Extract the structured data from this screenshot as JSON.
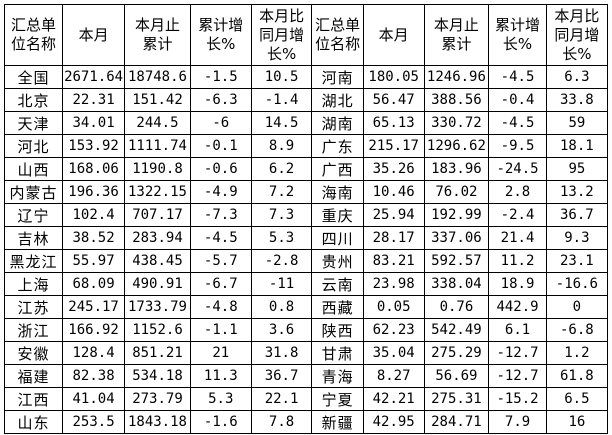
{
  "page": {
    "background_color": "#fdfdfd",
    "table_background_color": "#ffffff",
    "border_color": "#000000",
    "text_color": "#000000"
  },
  "table": {
    "header_labels": [
      "汇总单\n位名称",
      "本月",
      "本月止\n累计",
      "累计增\n长%",
      "本月比\n同月增\n长%"
    ],
    "column_group_count": 2,
    "rows_per_group": 16
  },
  "chart_data": {
    "type": "table",
    "columns": [
      "汇总单位名称",
      "本月",
      "本月止累计",
      "累计增长%",
      "本月比同月增长%"
    ],
    "layout": "two column-groups side by side, 16 rows each; records 0-15 fill the left group top-to-bottom, records 16-31 fill the right group",
    "records": [
      {
        "name": "全国",
        "values": [
          "2671.64",
          "18748.6",
          "-1.5",
          "10.5"
        ]
      },
      {
        "name": "北京",
        "values": [
          "22.31",
          "151.42",
          "-6.3",
          "-1.4"
        ]
      },
      {
        "name": "天津",
        "values": [
          "34.01",
          "244.5",
          "-6",
          "14.5"
        ]
      },
      {
        "name": "河北",
        "values": [
          "153.92",
          "1111.74",
          "-0.1",
          "8.9"
        ]
      },
      {
        "name": "山西",
        "values": [
          "168.06",
          "1190.8",
          "-0.6",
          "6.2"
        ]
      },
      {
        "name": "内蒙古",
        "values": [
          "196.36",
          "1322.15",
          "-4.9",
          "7.2"
        ]
      },
      {
        "name": "辽宁",
        "values": [
          "102.4",
          "707.17",
          "-7.3",
          "7.3"
        ]
      },
      {
        "name": "吉林",
        "values": [
          "38.52",
          "283.94",
          "-4.5",
          "5.3"
        ]
      },
      {
        "name": "黑龙江",
        "values": [
          "55.97",
          "438.45",
          "-5.7",
          "-2.8"
        ]
      },
      {
        "name": "上海",
        "values": [
          "68.09",
          "490.91",
          "-6.7",
          "-11"
        ]
      },
      {
        "name": "江苏",
        "values": [
          "245.17",
          "1733.79",
          "-4.8",
          "0.8"
        ]
      },
      {
        "name": "浙江",
        "values": [
          "166.92",
          "1152.6",
          "-1.1",
          "3.6"
        ]
      },
      {
        "name": "安徽",
        "values": [
          "128.4",
          "851.21",
          "21",
          "31.8"
        ]
      },
      {
        "name": "福建",
        "values": [
          "82.38",
          "534.18",
          "11.3",
          "36.7"
        ]
      },
      {
        "name": "江西",
        "values": [
          "41.04",
          "273.79",
          "5.3",
          "22.1"
        ]
      },
      {
        "name": "山东",
        "values": [
          "253.5",
          "1843.18",
          "-1.6",
          "7.8"
        ]
      },
      {
        "name": "河南",
        "values": [
          "180.05",
          "1246.96",
          "-4.5",
          "6.3"
        ]
      },
      {
        "name": "湖北",
        "values": [
          "56.47",
          "388.56",
          "-0.4",
          "33.8"
        ]
      },
      {
        "name": "湖南",
        "values": [
          "65.13",
          "330.72",
          "-4.5",
          "59"
        ]
      },
      {
        "name": "广东",
        "values": [
          "215.17",
          "1296.62",
          "-9.5",
          "18.1"
        ]
      },
      {
        "name": "广西",
        "values": [
          "35.26",
          "183.96",
          "-24.5",
          "95"
        ]
      },
      {
        "name": "海南",
        "values": [
          "10.46",
          "76.02",
          "2.8",
          "13.2"
        ]
      },
      {
        "name": "重庆",
        "values": [
          "25.94",
          "192.99",
          "-2.4",
          "36.7"
        ]
      },
      {
        "name": "四川",
        "values": [
          "28.17",
          "337.06",
          "21.4",
          "9.3"
        ]
      },
      {
        "name": "贵州",
        "values": [
          "83.21",
          "592.57",
          "11.2",
          "23.1"
        ]
      },
      {
        "name": "云南",
        "values": [
          "23.98",
          "338.04",
          "18.9",
          "-16.6"
        ]
      },
      {
        "name": "西藏",
        "values": [
          "0.05",
          "0.76",
          "442.9",
          "0"
        ]
      },
      {
        "name": "陕西",
        "values": [
          "62.23",
          "542.49",
          "6.1",
          "-6.8"
        ]
      },
      {
        "name": "甘肃",
        "values": [
          "35.04",
          "275.29",
          "-12.7",
          "1.2"
        ]
      },
      {
        "name": "青海",
        "values": [
          "8.27",
          "56.69",
          "-12.7",
          "61.8"
        ]
      },
      {
        "name": "宁夏",
        "values": [
          "42.21",
          "275.31",
          "-15.2",
          "6.5"
        ]
      },
      {
        "name": "新疆",
        "values": [
          "42.95",
          "284.71",
          "7.9",
          "16"
        ]
      }
    ]
  }
}
